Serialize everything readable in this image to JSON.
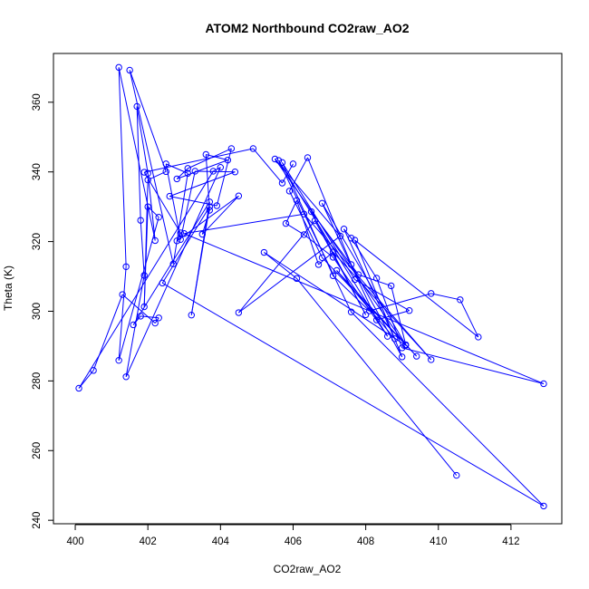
{
  "chart_data": {
    "type": "line",
    "title": "ATOM2 Northbound CO2raw_AO2",
    "xlabel": "CO2raw_AO2",
    "ylabel": "Theta (K)",
    "xlim": [
      399.4,
      413.4
    ],
    "ylim": [
      239,
      374
    ],
    "x_ticks": [
      400,
      402,
      404,
      406,
      408,
      410,
      412
    ],
    "x_tick_labels": [
      "400",
      "402",
      "404",
      "406",
      "408",
      "410",
      "412"
    ],
    "y_ticks": [
      240,
      260,
      280,
      300,
      320,
      340,
      360
    ],
    "y_tick_labels": [
      "240",
      "260",
      "280",
      "300",
      "320",
      "340",
      "360"
    ],
    "grid": false,
    "series": [
      {
        "color": "#0000ff",
        "marker": "open-circle",
        "points": [
          [
            410.5,
            252.9
          ],
          [
            406.1,
            309.4
          ],
          [
            405.2,
            316.9
          ],
          [
            409.1,
            290.2
          ],
          [
            405.5,
            343.7
          ],
          [
            407.3,
            321.6
          ],
          [
            404.5,
            299.6
          ],
          [
            406.6,
            326.0
          ],
          [
            408.0,
            299.0
          ],
          [
            406.5,
            328.6
          ],
          [
            407.8,
            310.5
          ],
          [
            408.7,
            307.3
          ],
          [
            409.1,
            290.4
          ],
          [
            406.8,
            331.0
          ],
          [
            408.3,
            297.5
          ],
          [
            409.2,
            300.2
          ],
          [
            407.7,
            309.1
          ],
          [
            405.7,
            342.7
          ],
          [
            407.1,
            310.2
          ],
          [
            408.1,
            300.1
          ],
          [
            409.8,
            305.1
          ],
          [
            410.6,
            303.3
          ],
          [
            411.1,
            292.6
          ],
          [
            407.7,
            320.4
          ],
          [
            409.0,
            286.9
          ],
          [
            407.6,
            313.4
          ],
          [
            406.4,
            344.1
          ],
          [
            405.9,
            334.5
          ],
          [
            406.8,
            315.4
          ],
          [
            409.4,
            287.1
          ],
          [
            407.2,
            311.7
          ],
          [
            408.8,
            292.1
          ],
          [
            407.4,
            323.6
          ],
          [
            407.6,
            321.0
          ],
          [
            408.3,
            309.5
          ],
          [
            409.0,
            289.5
          ],
          [
            412.9,
            279.2
          ],
          [
            403.0,
            322.3
          ],
          [
            406.3,
            327.9
          ],
          [
            409.8,
            286.1
          ],
          [
            407.1,
            317.0
          ],
          [
            406.7,
            313.4
          ],
          [
            406.1,
            331.8
          ],
          [
            405.8,
            325.2
          ],
          [
            406.3,
            322.0
          ],
          [
            407.1,
            315.5
          ],
          [
            408.6,
            292.8
          ],
          [
            405.6,
            343.3
          ],
          [
            407.6,
            299.8
          ],
          [
            412.9,
            244.1
          ],
          [
            402.4,
            308.1
          ],
          [
            403.7,
            330.0
          ],
          [
            403.2,
            298.9
          ],
          [
            403.7,
            331.4
          ],
          [
            401.6,
            296.1
          ],
          [
            401.8,
            298.6
          ],
          [
            402.3,
            298.1
          ],
          [
            402.2,
            296.6
          ],
          [
            401.3,
            304.8
          ],
          [
            400.5,
            283.0
          ],
          [
            400.1,
            277.9
          ],
          [
            403.8,
            340.2
          ],
          [
            404.0,
            341.3
          ],
          [
            401.4,
            281.2
          ],
          [
            401.9,
            310.3
          ],
          [
            401.8,
            326.1
          ],
          [
            401.7,
            358.8
          ],
          [
            402.0,
            339.6
          ],
          [
            402.2,
            320.3
          ],
          [
            401.2,
            370.0
          ],
          [
            401.4,
            312.8
          ],
          [
            401.2,
            285.9
          ],
          [
            402.3,
            327.0
          ],
          [
            402.0,
            330.0
          ],
          [
            401.9,
            301.3
          ],
          [
            402.0,
            337.7
          ],
          [
            402.5,
            340.1
          ],
          [
            401.5,
            369.2
          ],
          [
            402.7,
            313.6
          ],
          [
            403.1,
            339.6
          ],
          [
            402.5,
            342.3
          ],
          [
            402.9,
            320.6
          ],
          [
            403.3,
            340.2
          ],
          [
            404.4,
            340.0
          ],
          [
            402.6,
            333.0
          ],
          [
            403.9,
            330.3
          ],
          [
            404.3,
            346.7
          ],
          [
            403.1,
            341.0
          ],
          [
            402.8,
            338.0
          ],
          [
            404.2,
            343.4
          ],
          [
            403.6,
            345.0
          ],
          [
            403.7,
            329.0
          ],
          [
            403.5,
            322.1
          ],
          [
            404.5,
            333.1
          ],
          [
            402.8,
            320.2
          ],
          [
            402.9,
            322.5
          ],
          [
            401.9,
            339.9
          ],
          [
            404.9,
            346.7
          ],
          [
            405.7,
            336.8
          ],
          [
            406.0,
            342.3
          ]
        ]
      }
    ]
  }
}
